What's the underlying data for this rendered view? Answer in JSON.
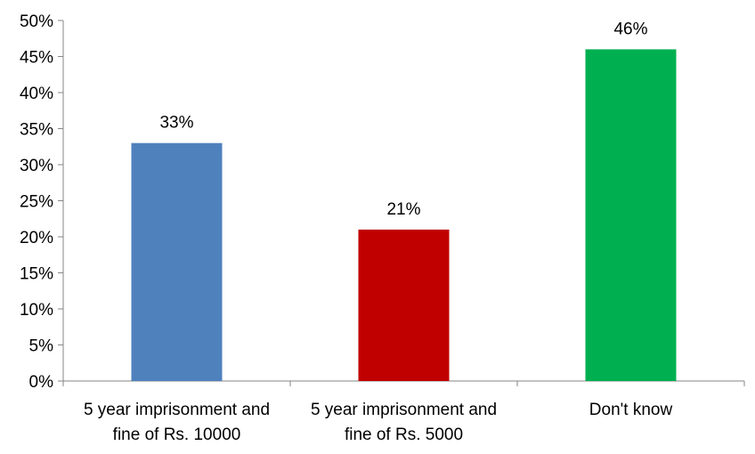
{
  "chart_data": {
    "type": "bar",
    "categories": [
      [
        "5 year imprisonment and",
        "fine of Rs. 10000"
      ],
      [
        "5 year imprisonment and",
        "fine of Rs. 5000"
      ],
      [
        "Don't know"
      ]
    ],
    "values": [
      33,
      21,
      46
    ],
    "data_labels": [
      "33%",
      "21%",
      "46%"
    ],
    "colors": [
      "#4F81BD",
      "#C00000",
      "#00B050"
    ],
    "ylim": [
      0,
      50
    ],
    "y_ticks": [
      0,
      5,
      10,
      15,
      20,
      25,
      30,
      35,
      40,
      45,
      50
    ],
    "y_tick_labels": [
      "0%",
      "5%",
      "10%",
      "15%",
      "20%",
      "25%",
      "30%",
      "35%",
      "40%",
      "45%",
      "50%"
    ],
    "grid": false,
    "legend": "none"
  }
}
